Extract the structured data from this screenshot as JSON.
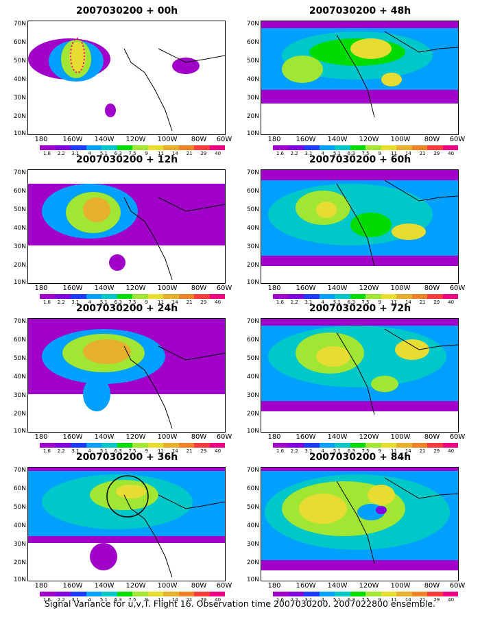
{
  "panels": [
    {
      "title": "2007030200 + 00h"
    },
    {
      "title": "2007030200 + 48h"
    },
    {
      "title": "2007030200 + 12h"
    },
    {
      "title": "2007030200 + 60h"
    },
    {
      "title": "2007030200 + 24h"
    },
    {
      "title": "2007030200 + 72h"
    },
    {
      "title": "2007030200 + 36h"
    },
    {
      "title": "2007030200 + 84h"
    }
  ],
  "lat_labels": [
    "70N",
    "60N",
    "50N",
    "40N",
    "30N",
    "20N",
    "10N"
  ],
  "lon_labels": [
    "180",
    "160W",
    "140W",
    "120W",
    "100W",
    "80W",
    "60W"
  ],
  "colorbar": {
    "labels": [
      "1.6",
      "2.2",
      "3.1",
      "4",
      "5.1",
      "6.3",
      "7.5",
      "9",
      "11",
      "14",
      "21",
      "29",
      "40"
    ],
    "colors": [
      "#a000c8",
      "#8200dc",
      "#1e3cff",
      "#00a0ff",
      "#00c8c8",
      "#00dc00",
      "#a0e632",
      "#e6dc32",
      "#e6af2d",
      "#f08228",
      "#fa3c3c",
      "#f00082"
    ]
  },
  "caption": "Signal Variance for u,v,T. Flight 16. Observation time 2007030200. 2007022800 ensemble."
}
